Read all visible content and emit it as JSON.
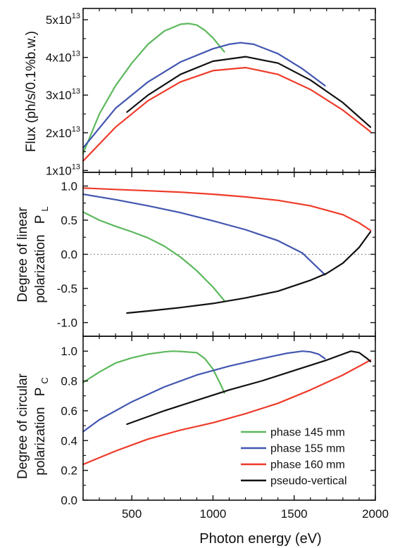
{
  "chart_data": [
    {
      "type": "line",
      "panel": "flux",
      "ylabel": "Flux (ph/s/0.1%b.w.)",
      "ylim": [
        9500000000000,
        53000000000000
      ],
      "xlim": [
        200,
        2000
      ],
      "y_ticks": [
        10000000000000,
        20000000000000,
        30000000000000,
        40000000000000,
        50000000000000
      ],
      "y_tick_labels": [
        {
          "mant": "1x10",
          "exp": "13"
        },
        {
          "mant": "2x10",
          "exp": "13"
        },
        {
          "mant": "3x10",
          "exp": "13"
        },
        {
          "mant": "4x10",
          "exp": "13"
        },
        {
          "mant": "5x10",
          "exp": "13"
        }
      ],
      "series": [
        {
          "key": "phase145",
          "x": [
            200,
            300,
            400,
            500,
            600,
            700,
            800,
            850,
            900,
            950,
            1000,
            1050,
            1070
          ],
          "y": [
            14500000000000,
            25000000000000,
            32500000000000,
            38500000000000,
            43500000000000,
            47000000000000,
            48800000000000,
            49000000000000,
            48600000000000,
            47200000000000,
            45200000000000,
            42500000000000,
            41500000000000
          ]
        },
        {
          "key": "phase155",
          "x": [
            200,
            400,
            600,
            800,
            1000,
            1100,
            1170,
            1250,
            1400,
            1550,
            1690
          ],
          "y": [
            16000000000000,
            26500000000000,
            33500000000000,
            38800000000000,
            42300000000000,
            43500000000000,
            43900000000000,
            43500000000000,
            41000000000000,
            37000000000000,
            32500000000000
          ]
        },
        {
          "key": "phase160",
          "x": [
            200,
            400,
            600,
            800,
            1000,
            1200,
            1400,
            1600,
            1800,
            1970
          ],
          "y": [
            12500000000000,
            21500000000000,
            28500000000000,
            33500000000000,
            36500000000000,
            37300000000000,
            35500000000000,
            31500000000000,
            26000000000000,
            20300000000000
          ]
        },
        {
          "key": "pseudo",
          "x": [
            470,
            600,
            800,
            1000,
            1200,
            1400,
            1600,
            1800,
            1970
          ],
          "y": [
            25500000000000,
            30000000000000,
            35500000000000,
            39000000000000,
            40200000000000,
            38500000000000,
            34000000000000,
            28000000000000,
            21500000000000
          ]
        }
      ]
    },
    {
      "type": "line",
      "panel": "linear",
      "ylabel_line1": "Degree of linear",
      "ylabel_line2": "polarization",
      "symbol": "P",
      "symbol_sub": "L",
      "ylim": [
        -1.2,
        1.2
      ],
      "xlim": [
        200,
        2000
      ],
      "y_ticks": [
        -1.0,
        -0.5,
        0.0,
        0.5,
        1.0
      ],
      "y_tick_labels": [
        "-1.0",
        "-0.5",
        "0.0",
        "0.5",
        "1.0"
      ],
      "zero_line": true,
      "series": [
        {
          "key": "phase145",
          "x": [
            200,
            300,
            400,
            500,
            600,
            700,
            800,
            900,
            1000,
            1070
          ],
          "y": [
            0.62,
            0.5,
            0.41,
            0.33,
            0.24,
            0.12,
            -0.04,
            -0.24,
            -0.48,
            -0.68
          ]
        },
        {
          "key": "phase155",
          "x": [
            200,
            400,
            600,
            800,
            1000,
            1200,
            1400,
            1550,
            1690
          ],
          "y": [
            0.88,
            0.8,
            0.71,
            0.61,
            0.49,
            0.36,
            0.2,
            0.02,
            -0.3
          ]
        },
        {
          "key": "phase160",
          "x": [
            200,
            400,
            600,
            800,
            1000,
            1200,
            1400,
            1600,
            1800,
            1900,
            1970
          ],
          "y": [
            0.97,
            0.95,
            0.93,
            0.91,
            0.88,
            0.84,
            0.79,
            0.71,
            0.58,
            0.46,
            0.35
          ]
        },
        {
          "key": "pseudo",
          "x": [
            470,
            600,
            800,
            1000,
            1200,
            1400,
            1600,
            1700,
            1800,
            1900,
            1970
          ],
          "y": [
            -0.86,
            -0.83,
            -0.78,
            -0.72,
            -0.64,
            -0.54,
            -0.38,
            -0.28,
            -0.13,
            0.1,
            0.33
          ]
        }
      ]
    },
    {
      "type": "line",
      "panel": "circular",
      "ylabel_line1": "Degree of circular",
      "ylabel_line2": "polarization",
      "symbol": "P",
      "symbol_sub": "C",
      "ylim": [
        0.0,
        1.1
      ],
      "xlim": [
        200,
        2000
      ],
      "xlabel": "Photon energy (eV)",
      "x_ticks": [
        500,
        1000,
        1500,
        2000
      ],
      "x_tick_labels": [
        "500",
        "1000",
        "1500",
        "2000"
      ],
      "y_ticks": [
        0.0,
        0.2,
        0.4,
        0.6,
        0.8,
        1.0
      ],
      "y_tick_labels": [
        "0.0",
        "0.2",
        "0.4",
        "0.6",
        "0.8",
        "1.0"
      ],
      "series": [
        {
          "key": "phase145",
          "x": [
            200,
            300,
            400,
            500,
            600,
            700,
            750,
            800,
            900,
            950,
            1000,
            1050,
            1070
          ],
          "y": [
            0.79,
            0.86,
            0.92,
            0.955,
            0.98,
            0.995,
            1.0,
            0.998,
            0.99,
            0.95,
            0.88,
            0.77,
            0.72
          ]
        },
        {
          "key": "phase155",
          "x": [
            200,
            300,
            500,
            700,
            900,
            1100,
            1300,
            1450,
            1550,
            1600,
            1650,
            1690
          ],
          "y": [
            0.46,
            0.54,
            0.66,
            0.76,
            0.84,
            0.9,
            0.95,
            0.985,
            1.0,
            0.995,
            0.98,
            0.95
          ]
        },
        {
          "key": "phase160",
          "x": [
            200,
            400,
            600,
            800,
            1000,
            1200,
            1400,
            1600,
            1800,
            1970
          ],
          "y": [
            0.24,
            0.33,
            0.41,
            0.47,
            0.52,
            0.58,
            0.65,
            0.74,
            0.84,
            0.94
          ]
        },
        {
          "key": "pseudo",
          "x": [
            470,
            700,
            900,
            1100,
            1300,
            1500,
            1700,
            1800,
            1850,
            1900,
            1950,
            1970
          ],
          "y": [
            0.51,
            0.6,
            0.67,
            0.74,
            0.8,
            0.87,
            0.94,
            0.98,
            1.0,
            0.99,
            0.95,
            0.93
          ]
        }
      ]
    }
  ],
  "legend": {
    "position": "bottom-right",
    "entries": [
      {
        "key": "phase145",
        "label": "phase 145 mm",
        "color": "#5cb85c"
      },
      {
        "key": "phase155",
        "label": "phase 155 mm",
        "color": "#4256b0"
      },
      {
        "key": "phase160",
        "label": "phase 160 mm",
        "color": "#ee3b2a"
      },
      {
        "key": "pseudo",
        "label": "pseudo-vertical",
        "color": "#111111"
      }
    ]
  }
}
